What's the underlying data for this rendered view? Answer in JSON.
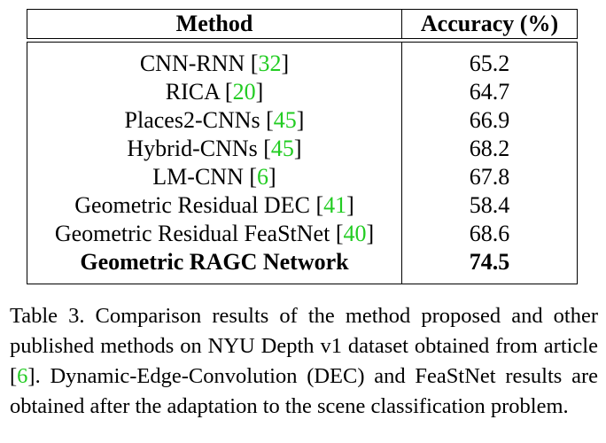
{
  "table": {
    "header": {
      "method": "Method",
      "accuracy": "Accuracy (%)"
    },
    "rows": [
      {
        "name": "CNN-RNN",
        "open": " [",
        "cite": "32",
        "close": "]",
        "accuracy": "65.2",
        "bold": false
      },
      {
        "name": "RICA",
        "open": " [",
        "cite": "20",
        "close": "]",
        "accuracy": "64.7",
        "bold": false
      },
      {
        "name": "Places2-CNNs",
        "open": " [",
        "cite": "45",
        "close": "]",
        "accuracy": "66.9",
        "bold": false
      },
      {
        "name": "Hybrid-CNNs",
        "open": " [",
        "cite": "45",
        "close": "]",
        "accuracy": "68.2",
        "bold": false
      },
      {
        "name": "LM-CNN",
        "open": " [",
        "cite": "6",
        "close": "]",
        "accuracy": "67.8",
        "bold": false
      },
      {
        "name": "Geometric Residual DEC",
        "open": " [",
        "cite": "41",
        "close": "]",
        "accuracy": "58.4",
        "bold": false
      },
      {
        "name": "Geometric Residual FeaStNet",
        "open": " [",
        "cite": "40",
        "close": "]",
        "accuracy": "68.6",
        "bold": false
      },
      {
        "name": "Geometric RAGC Network",
        "open": "",
        "cite": "",
        "close": "",
        "accuracy": "74.5",
        "bold": true
      }
    ]
  },
  "caption": {
    "before": "Table 3. Comparison results of the method proposed and other published methods on NYU Depth v1 dataset obtained from article [",
    "cite": "6",
    "after": "]. Dynamic-Edge-Convolution (DEC) and FeaStNet results are obtained after the adaptation to the scene classification problem."
  },
  "colors": {
    "citation": "#22cc22",
    "text": "#000000"
  }
}
